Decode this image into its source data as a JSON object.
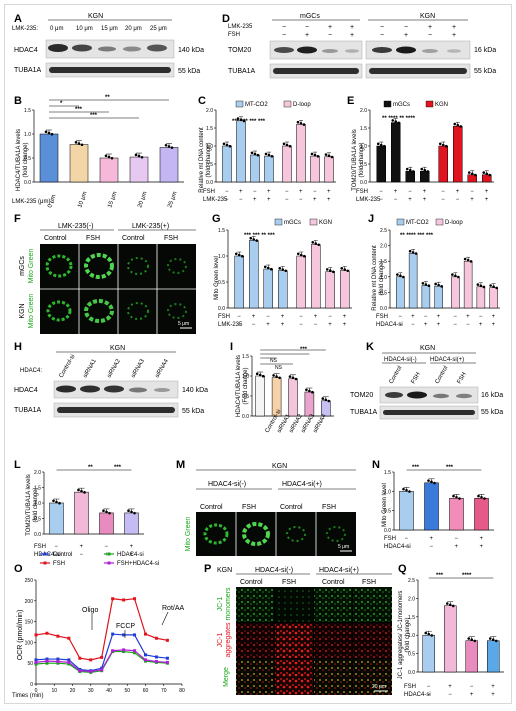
{
  "panels": {
    "A": {
      "letter": "A",
      "lmk_label": "LMK-235:",
      "group": "KGN",
      "doses": [
        "0 μm",
        "10 μm",
        "15 μm",
        "20 μm",
        "25 μm"
      ],
      "band1": "HDAC4",
      "band2": "TUBA1A",
      "kda1": "140 kDa",
      "kda2": "55 kDa"
    },
    "B": {
      "letter": "B",
      "ylabel": "HDAC4/TUBA1A levels",
      "ylabel2": "(fold change)",
      "xlabel": "LMK-235 (μm):",
      "sig": [
        "*",
        "***",
        "***",
        "**"
      ]
    },
    "C": {
      "letter": "C",
      "ylabel": "Relative mt DNA content",
      "ylabel2": "(fold change)",
      "legend": [
        "MT-CO2",
        "D-loop"
      ],
      "fsh": "FSH",
      "lmk": "LMK-235",
      "sig": "*** *** *** ***"
    },
    "D": {
      "letter": "D",
      "g1": "mGCs",
      "g2": "KGN",
      "lmk": "LMK-235",
      "fsh": "FSH",
      "band1": "TOM20",
      "band2": "TUBA1A",
      "kda1": "16 kDa",
      "kda2": "55 kDa"
    },
    "E": {
      "letter": "E",
      "ylabel": "TOM20/TUBA1A levels",
      "ylabel2": "(fold change)",
      "legend": [
        "mGCs",
        "KGN"
      ],
      "fsh": "FSH",
      "lmk": "LMK-235",
      "sig": "** **** ** ****"
    },
    "F": {
      "letter": "F",
      "cond1": "LMK-235(-)",
      "cond2": "LMK-235(+)",
      "cols": [
        "Control",
        "FSH",
        "Control",
        "FSH"
      ],
      "row1": "mGCs",
      "row2": "KGN",
      "stain": "Mito Green",
      "scale": "5 μm"
    },
    "G": {
      "letter": "G",
      "ylabel": "Mito Green level",
      "legend": [
        "mGCs",
        "KGN"
      ],
      "fsh": "FSH",
      "lmk": "LMK-235",
      "sig": "*** *** ** ***"
    },
    "H": {
      "letter": "H",
      "group": "KGN",
      "hdac_label": "HDAC4:",
      "lanes": [
        "Control-si",
        "siRNA1",
        "siRNA2",
        "siRNA3",
        "siRNA4"
      ],
      "band1": "HDAC4",
      "band2": "TUBA1A",
      "kda1": "140 kDa",
      "kda2": "55 kDa"
    },
    "I": {
      "letter": "I",
      "ylabel": "HDAC4/TUBA1A levels",
      "ylabel2": "(Fold change)",
      "lanes": [
        "Control-si",
        "siRNA1",
        "siRNA2",
        "siRNA3",
        "siRNA4"
      ],
      "ns": "NS",
      "sig": "***"
    },
    "J": {
      "letter": "J",
      "ylabel": "Relative mt DNA content",
      "ylabel2": "(fold change)",
      "legend": [
        "MT-CO2",
        "D-loop"
      ],
      "fsh": "FSH",
      "hdac": "HDAC4-si",
      "sig": "** **** *** ***"
    },
    "K": {
      "letter": "K",
      "group": "KGN",
      "c1": "HDAC4-si(-)",
      "c2": "HDAC4-si(+)",
      "lanes": [
        "Control",
        "FSH",
        "Control",
        "FSH"
      ],
      "band1": "TOM20",
      "band2": "TUBA1A",
      "kda1": "16 kDa",
      "kda2": "55 kDa"
    },
    "L": {
      "letter": "L",
      "ylabel": "TOM20/TUBA1A levels",
      "ylabel2": "(fold change)",
      "fsh": "FSH",
      "hdac": "HDAC4-si",
      "sig": [
        "**",
        "***"
      ]
    },
    "M": {
      "letter": "M",
      "group": "KGN",
      "c1": "HDAC4-si(-)",
      "c2": "HDAC4-si(+)",
      "cols": [
        "Control",
        "FSH",
        "Control",
        "FSH"
      ],
      "stain": "Mito Green",
      "scale": "5 μm"
    },
    "N": {
      "letter": "N",
      "ylabel": "Mito Green level",
      "fsh": "FSH",
      "hdac": "HDAC4-si",
      "sig": [
        "***",
        "***"
      ]
    },
    "O": {
      "letter": "O",
      "ylabel": "OCR (pmol/min)",
      "xlabel": "Times (min)",
      "annotations": [
        "Oligo",
        "FCCP",
        "Rot/AA"
      ]
    },
    "P": {
      "letter": "P",
      "group": "KGN",
      "c1": "HDAC4-si(-)",
      "c2": "HDAC4-si(+)",
      "cols": [
        "Control",
        "FSH",
        "Control",
        "FSH"
      ],
      "row1a": "JC-1",
      "row1b": "monomers",
      "row2a": "JC-1",
      "row2b": "aggregates",
      "row3": "Merge",
      "scale": "20 μm"
    },
    "Q": {
      "letter": "Q",
      "ylabel": "JC-1 aggregates/ JC-1monomers",
      "ylabel2": "(fold change)",
      "fsh": "FSH",
      "hdac": "HDAC4-si",
      "sig": [
        "***",
        "****"
      ]
    }
  },
  "chart_data": [
    {
      "panel": "B",
      "type": "bar",
      "categories": [
        "0 μm",
        "10 μm",
        "15 μm",
        "20 μm",
        "25 μm"
      ],
      "values": [
        1.0,
        0.78,
        0.5,
        0.52,
        0.72
      ],
      "ylim": [
        0,
        1.5
      ],
      "yticks": [
        0.0,
        0.5,
        1.0,
        1.5
      ],
      "colors": [
        "#5b8fd8",
        "#f2d6a8",
        "#f6b8d8",
        "#e6c8f0",
        "#c4b6f2"
      ]
    },
    {
      "panel": "C",
      "type": "bar",
      "series": [
        {
          "name": "MT-CO2",
          "values": [
            1.0,
            1.7,
            0.75,
            0.72
          ]
        },
        {
          "name": "D-loop",
          "values": [
            1.0,
            1.6,
            0.72,
            0.7
          ]
        }
      ],
      "ylim": [
        0,
        2.0
      ],
      "yticks": [
        0.0,
        0.5,
        1.0,
        1.5,
        2.0
      ]
    },
    {
      "panel": "E",
      "type": "bar",
      "series": [
        {
          "name": "mGCs",
          "values": [
            1.0,
            1.65,
            0.3,
            0.3
          ]
        },
        {
          "name": "KGN",
          "values": [
            1.0,
            1.55,
            0.2,
            0.2
          ]
        }
      ],
      "ylim": [
        0,
        2.0
      ],
      "yticks": [
        0.0,
        0.5,
        1.0,
        1.5,
        2.0
      ]
    },
    {
      "panel": "G",
      "type": "bar",
      "series": [
        {
          "name": "mGCs",
          "values": [
            1.0,
            1.3,
            0.75,
            0.72
          ]
        },
        {
          "name": "KGN",
          "values": [
            1.0,
            1.22,
            0.7,
            0.72
          ]
        }
      ],
      "ylim": [
        0,
        1.5
      ],
      "yticks": [
        0.0,
        0.5,
        1.0,
        1.5
      ]
    },
    {
      "panel": "I",
      "type": "bar",
      "categories": [
        "Control-si",
        "siRNA1",
        "siRNA2",
        "siRNA3",
        "siRNA4"
      ],
      "values": [
        1.0,
        0.96,
        0.93,
        0.6,
        0.38
      ],
      "ylim": [
        0,
        1.5
      ],
      "yticks": [
        0.0,
        0.5,
        1.0,
        1.5
      ]
    },
    {
      "panel": "J",
      "type": "bar",
      "series": [
        {
          "name": "MT-CO2",
          "values": [
            1.0,
            1.75,
            0.72,
            0.7
          ]
        },
        {
          "name": "D-loop",
          "values": [
            1.0,
            1.5,
            0.68,
            0.65
          ]
        }
      ],
      "ylim": [
        0,
        2.5
      ],
      "yticks": [
        0.0,
        0.5,
        1.0,
        1.5,
        2.0,
        2.5
      ]
    },
    {
      "panel": "L",
      "type": "bar",
      "categories": [
        "Control",
        "FSH",
        "HDAC4-si",
        "FSH+HDAC4-si"
      ],
      "values": [
        1.0,
        1.35,
        0.68,
        0.68
      ],
      "ylim": [
        0,
        2.0
      ],
      "yticks": [
        0.0,
        0.5,
        1.0,
        1.5,
        2.0
      ]
    },
    {
      "panel": "N",
      "type": "bar",
      "categories": [
        "Control",
        "FSH",
        "HDAC4-si",
        "FSH+HDAC4-si"
      ],
      "values": [
        1.0,
        1.22,
        0.82,
        0.82
      ],
      "ylim": [
        0,
        1.5
      ],
      "yticks": [
        0.0,
        0.5,
        1.0,
        1.5
      ]
    },
    {
      "panel": "O",
      "type": "line",
      "legend": [
        "Control",
        "HDAC4-si",
        "FSH",
        "FSH+HDAC4-si"
      ],
      "x": [
        0,
        6,
        12,
        18,
        24,
        30,
        36,
        42,
        48,
        54,
        60,
        66,
        72
      ],
      "series": [
        {
          "name": "Control",
          "color": "#1f3dd6",
          "values": [
            58,
            60,
            60,
            58,
            35,
            32,
            38,
            120,
            118,
            118,
            70,
            65,
            62
          ]
        },
        {
          "name": "HDAC4-si",
          "color": "#19a519",
          "values": [
            48,
            50,
            50,
            48,
            30,
            28,
            32,
            78,
            78,
            75,
            55,
            52,
            50
          ]
        },
        {
          "name": "FSH",
          "color": "#e0141e",
          "values": [
            118,
            122,
            115,
            110,
            62,
            58,
            64,
            205,
            202,
            205,
            120,
            110,
            105
          ]
        },
        {
          "name": "FSH+HDAC4-si",
          "color": "#b11fd6",
          "values": [
            52,
            55,
            54,
            52,
            32,
            30,
            34,
            80,
            82,
            80,
            58,
            54,
            52
          ]
        }
      ],
      "ylim": [
        0,
        250
      ],
      "yticks": [
        0,
        50,
        100,
        150,
        200,
        250
      ],
      "xlim": [
        0,
        80
      ],
      "xticks": [
        0,
        10,
        20,
        30,
        40,
        50,
        60,
        70,
        80
      ]
    },
    {
      "panel": "Q",
      "type": "bar",
      "categories": [
        "Control",
        "FSH",
        "HDAC4-si",
        "FSH+HDAC4-si"
      ],
      "values": [
        1.0,
        1.8,
        0.85,
        0.85
      ],
      "ylim": [
        0,
        2.5
      ],
      "yticks": [
        0.0,
        0.5,
        1.0,
        1.5,
        2.0,
        2.5
      ]
    }
  ]
}
